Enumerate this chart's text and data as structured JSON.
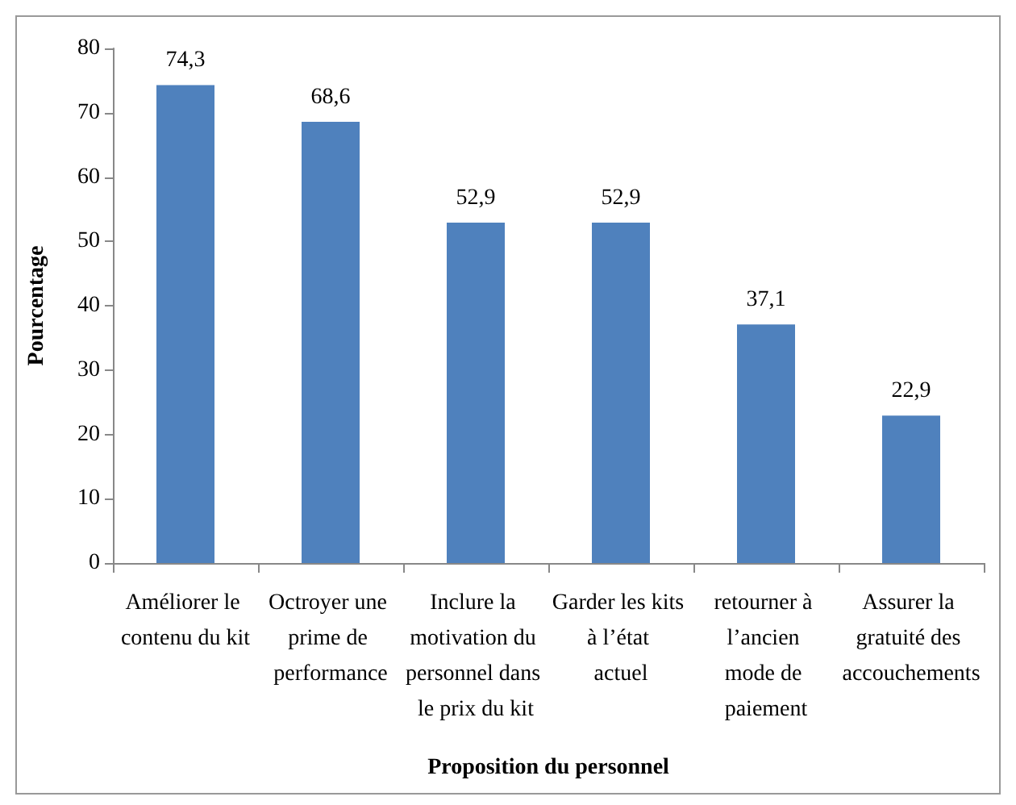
{
  "chart_data": {
    "type": "bar",
    "xlabel": "Proposition du personnel",
    "ylabel": "Pourcentage",
    "categories": [
      "Améliorer le contenu du kit",
      "Octroyer une prime de performance",
      "Inclure la motivation du personnel dans le prix du kit",
      "Garder les kits à l’état actuel",
      "retourner à l’ancien mode de paiement",
      "Assurer la gratuité des accouchements"
    ],
    "values": [
      74.3,
      68.6,
      52.9,
      52.9,
      37.1,
      22.9
    ],
    "value_labels": [
      "74,3",
      "68,6",
      "52,9",
      "52,9",
      "37,1",
      "22,9"
    ],
    "color": "#4f81bd",
    "ylim": [
      0,
      80
    ],
    "yticks": [
      0,
      10,
      20,
      30,
      40,
      50,
      60,
      70,
      80
    ],
    "grid": false
  }
}
